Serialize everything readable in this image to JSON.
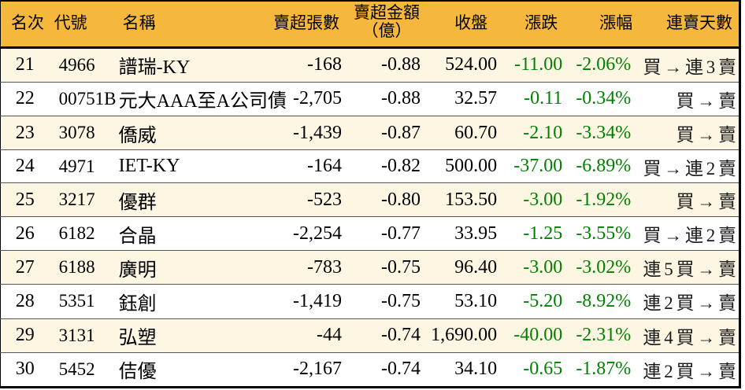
{
  "table": {
    "accent_colors": {
      "header_bg": "#f5b83d",
      "row_alt_bg": "#fdf6e3",
      "down_green": "#008000",
      "border": "#000000"
    },
    "headers": {
      "rank": "名次",
      "code": "代號",
      "name": "名稱",
      "volume": "賣超張數",
      "amount_line1": "賣超金額",
      "amount_line2": "（億）",
      "close": "收盤",
      "change": "漲跌",
      "change_pct": "漲幅",
      "streak": "連賣天數"
    },
    "rows": [
      {
        "rank": "21",
        "code": "4966",
        "name": "譜瑞-KY",
        "volume": "-168",
        "amount": "-0.88",
        "close": "524.00",
        "change": "-11.00",
        "change_pct": "-2.06%",
        "streak": "買 → 連 3 賣"
      },
      {
        "rank": "22",
        "code": "00751B",
        "name": "元大AAA至A公司債",
        "volume": "-2,705",
        "amount": "-0.88",
        "close": "32.57",
        "change": "-0.11",
        "change_pct": "-0.34%",
        "streak": "買 → 賣"
      },
      {
        "rank": "23",
        "code": "3078",
        "name": "僑威",
        "volume": "-1,439",
        "amount": "-0.87",
        "close": "60.70",
        "change": "-2.10",
        "change_pct": "-3.34%",
        "streak": "買 → 賣"
      },
      {
        "rank": "24",
        "code": "4971",
        "name": "IET-KY",
        "volume": "-164",
        "amount": "-0.82",
        "close": "500.00",
        "change": "-37.00",
        "change_pct": "-6.89%",
        "streak": "買 → 連 2 賣"
      },
      {
        "rank": "25",
        "code": "3217",
        "name": "優群",
        "volume": "-523",
        "amount": "-0.80",
        "close": "153.50",
        "change": "-3.00",
        "change_pct": "-1.92%",
        "streak": "買 → 賣"
      },
      {
        "rank": "26",
        "code": "6182",
        "name": "合晶",
        "volume": "-2,254",
        "amount": "-0.77",
        "close": "33.95",
        "change": "-1.25",
        "change_pct": "-3.55%",
        "streak": "買 → 連 2 賣"
      },
      {
        "rank": "27",
        "code": "6188",
        "name": "廣明",
        "volume": "-783",
        "amount": "-0.75",
        "close": "96.40",
        "change": "-3.00",
        "change_pct": "-3.02%",
        "streak": "連 5 買 → 賣"
      },
      {
        "rank": "28",
        "code": "5351",
        "name": "鈺創",
        "volume": "-1,419",
        "amount": "-0.75",
        "close": "53.10",
        "change": "-5.20",
        "change_pct": "-8.92%",
        "streak": "連 2 買 → 賣"
      },
      {
        "rank": "29",
        "code": "3131",
        "name": "弘塑",
        "volume": "-44",
        "amount": "-0.74",
        "close": "1,690.00",
        "change": "-40.00",
        "change_pct": "-2.31%",
        "streak": "連 4 買 → 賣"
      },
      {
        "rank": "30",
        "code": "5452",
        "name": "佶優",
        "volume": "-2,167",
        "amount": "-0.74",
        "close": "34.10",
        "change": "-0.65",
        "change_pct": "-1.87%",
        "streak": "連 2 買 → 賣"
      }
    ]
  }
}
